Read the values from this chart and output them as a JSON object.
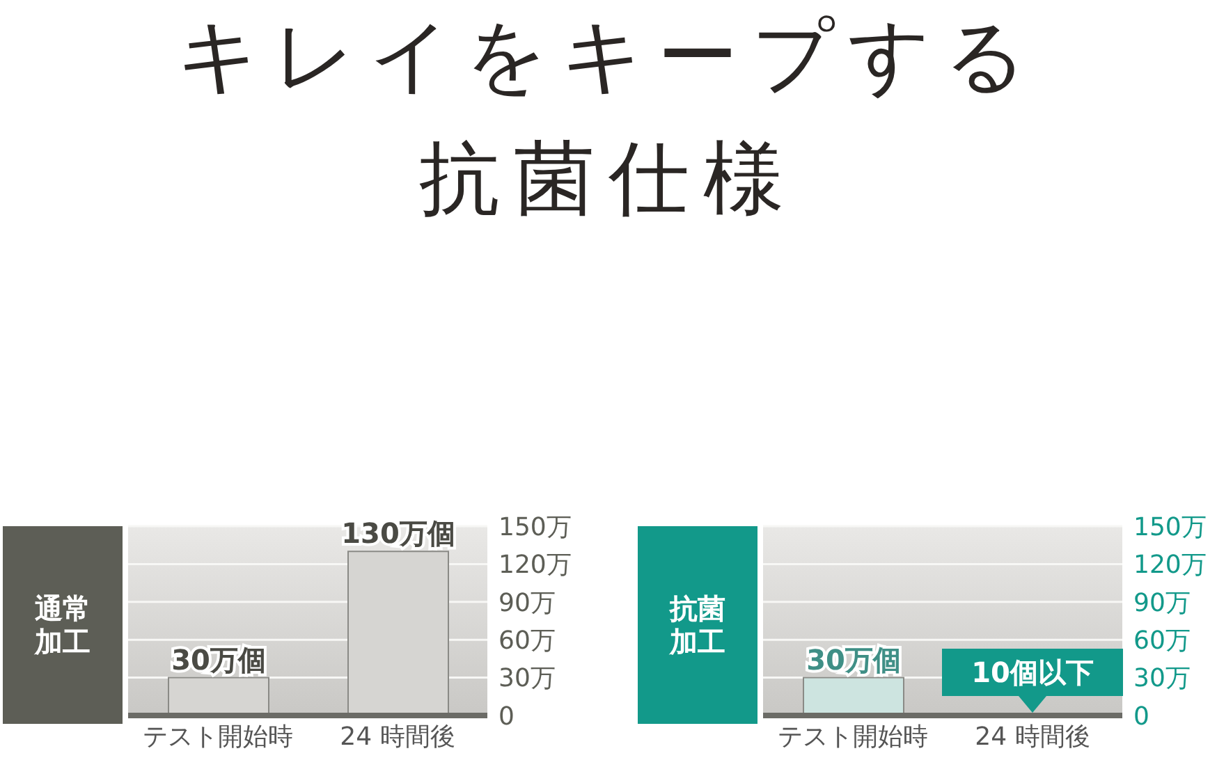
{
  "chart_data": [
    {
      "type": "bar",
      "title": "キレイをキープする抗菌仕様",
      "ylabel": "通常加工",
      "categories": [
        "テスト開始時",
        "24 時間後"
      ],
      "series": [
        {
          "color": "#d6d5d2",
          "values": [
            30,
            130
          ],
          "value_labels": [
            "30万個",
            "130万個"
          ]
        }
      ],
      "ylim": [
        0,
        150
      ],
      "yticks": [
        {
          "value": 0,
          "label": "0"
        },
        {
          "value": 30,
          "label": "30万"
        },
        {
          "value": 60,
          "label": "60万"
        },
        {
          "value": 90,
          "label": "90万"
        },
        {
          "value": 120,
          "label": "120万"
        },
        {
          "value": 150,
          "label": "150万"
        }
      ],
      "grid": "y",
      "legend": false
    },
    {
      "type": "bar",
      "ylabel": "抗菌加工",
      "categories": [
        "テスト開始時",
        "24 時間後"
      ],
      "series": [
        {
          "color": "#cde4e0",
          "values": [
            30,
            null
          ],
          "value_labels": [
            "30万個",
            null
          ]
        }
      ],
      "annotations": [
        "10個以下"
      ],
      "ylim": [
        0,
        150
      ],
      "yticks": [
        {
          "value": 0,
          "label": "0"
        },
        {
          "value": 30,
          "label": "30万"
        },
        {
          "value": 60,
          "label": "60万"
        },
        {
          "value": 90,
          "label": "90万"
        },
        {
          "value": 120,
          "label": "120万"
        },
        {
          "value": 150,
          "label": "150万"
        }
      ],
      "grid": "y",
      "legend": false
    }
  ]
}
